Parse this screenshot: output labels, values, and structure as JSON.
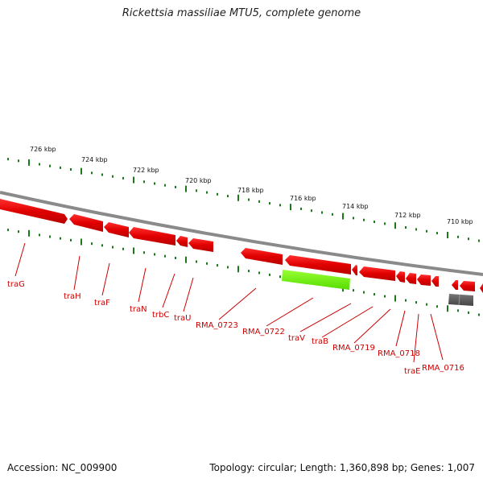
{
  "title": "Rickettsia massiliae MTU5, complete genome",
  "footer": {
    "accession": "Accession: NC_009900",
    "summary": "Topology: circular; Length: 1,360,898 bp; Genes: 1,007"
  },
  "scale": {
    "labels": [
      "726 kbp",
      "724 kbp",
      "722 kbp",
      "720 kbp",
      "718 kbp",
      "716 kbp",
      "714 kbp",
      "712 kbp",
      "710 kbp"
    ]
  },
  "genes": {
    "labels": [
      "traG",
      "traH",
      "traF",
      "traN",
      "trbC",
      "traU",
      "RMA_0723",
      "RMA_0722",
      "traV",
      "traB",
      "RMA_0719",
      "RMA_0718",
      "traE",
      "RMA_0716"
    ]
  },
  "colors": {
    "gene": "#e8000b",
    "gene_highlight": "#66ff00",
    "rna": "#555555",
    "backbone": "#888888",
    "tick": "#1a7a1a",
    "label": "#cc0000"
  }
}
